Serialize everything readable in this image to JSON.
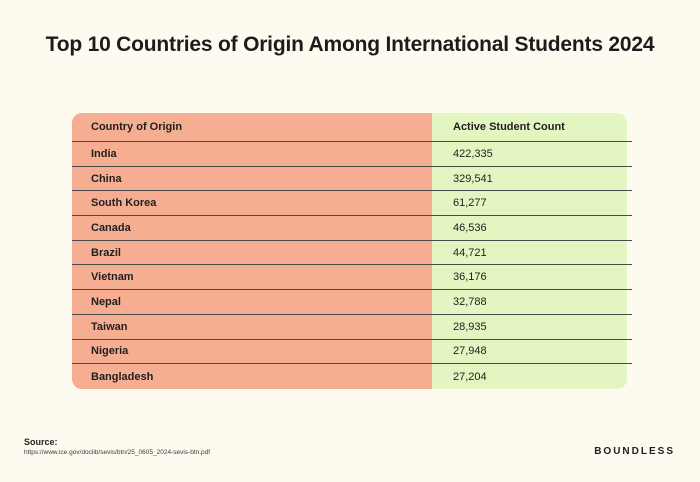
{
  "title": "Top 10 Countries of Origin Among International Students 2024",
  "table": {
    "header": {
      "country": "Country of Origin",
      "count": "Active Student Count"
    },
    "rows": [
      {
        "country": "India",
        "count": "422,335"
      },
      {
        "country": "China",
        "count": "329,541"
      },
      {
        "country": "South Korea",
        "count": "61,277"
      },
      {
        "country": "Canada",
        "count": "46,536"
      },
      {
        "country": "Brazil",
        "count": "44,721"
      },
      {
        "country": "Vietnam",
        "count": "36,176"
      },
      {
        "country": "Nepal",
        "count": "32,788"
      },
      {
        "country": "Taiwan",
        "count": "28,935"
      },
      {
        "country": "Nigeria",
        "count": "27,948"
      },
      {
        "country": "Bangladesh",
        "count": "27,204"
      }
    ]
  },
  "footer": {
    "source_label": "Source:",
    "source_url": "https://www.ice.gov/doclib/sevis/btn/25_0605_2024-sevis-btn.pdf",
    "brand": "BOUNDLESS"
  },
  "colors": {
    "background": "#fdfbef",
    "left_column": "#f5ae91",
    "right_column": "#e3f6c2"
  },
  "chart_data": {
    "type": "table",
    "title": "Top 10 Countries of Origin Among International Students 2024",
    "columns": [
      "Country of Origin",
      "Active Student Count"
    ],
    "categories": [
      "India",
      "China",
      "South Korea",
      "Canada",
      "Brazil",
      "Vietnam",
      "Nepal",
      "Taiwan",
      "Nigeria",
      "Bangladesh"
    ],
    "values": [
      422335,
      329541,
      61277,
      46536,
      44721,
      36176,
      32788,
      28935,
      27948,
      27204
    ]
  }
}
